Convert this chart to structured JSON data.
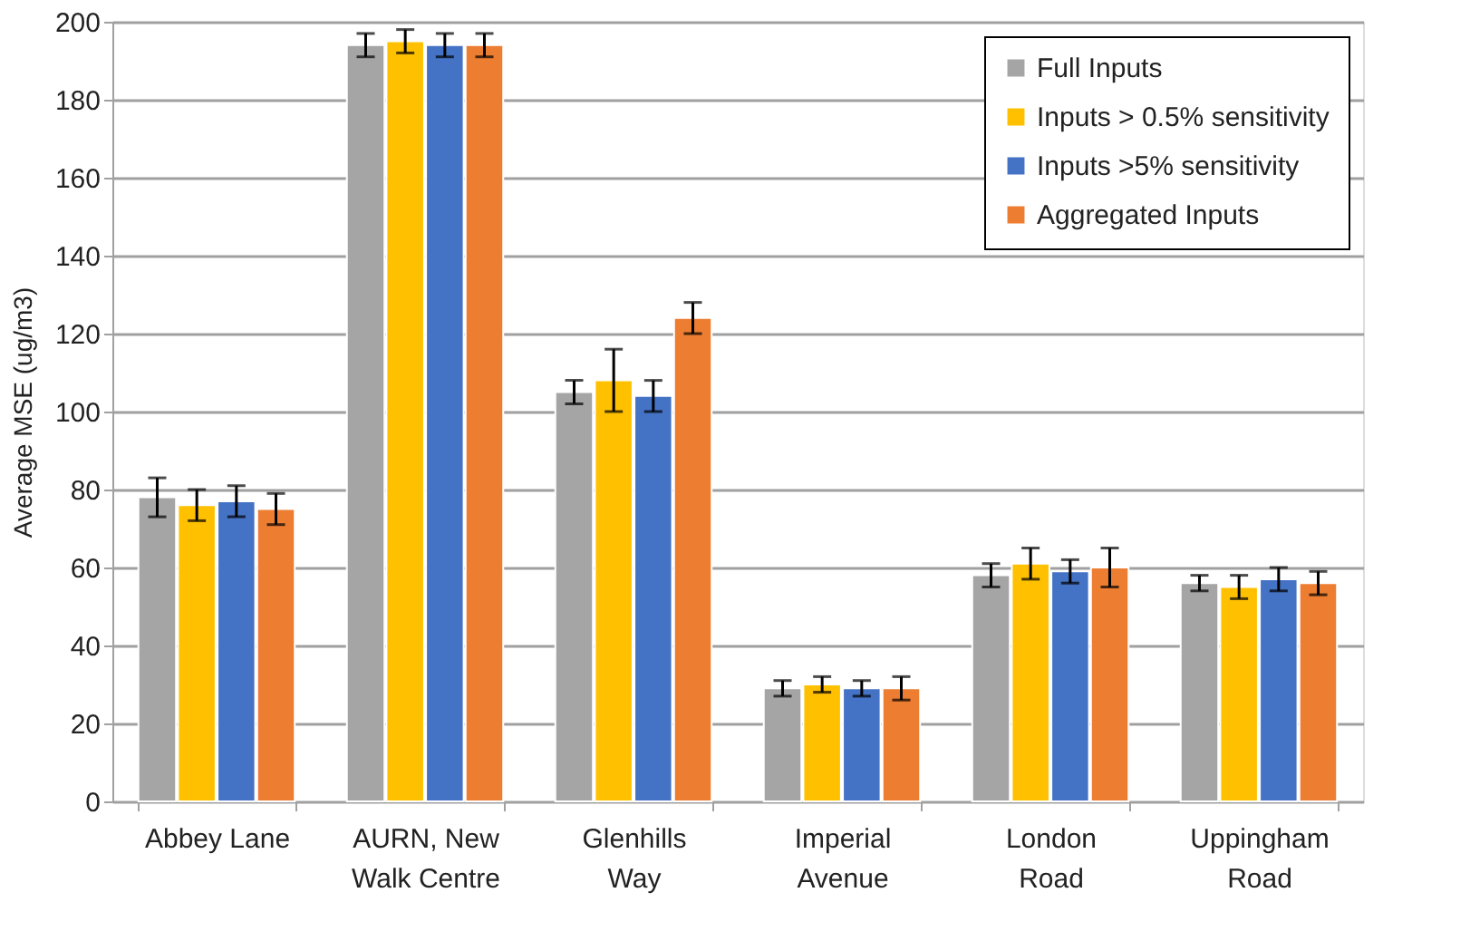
{
  "chart_data": {
    "type": "bar",
    "ylabel": "Average MSE (ug/m3)",
    "categories": [
      "Abbey Lane",
      "AURN, New\nWalk Centre",
      "Glenhills\nWay",
      "Imperial\nAvenue",
      "London\nRoad",
      "Uppingham\nRoad"
    ],
    "series": [
      {
        "name": "Full Inputs",
        "color": "#a5a5a5",
        "values": [
          78,
          194,
          105,
          29,
          58,
          56
        ],
        "errors": [
          5,
          3,
          3,
          2,
          3,
          2
        ]
      },
      {
        "name": "Inputs > 0.5% sensitivity",
        "color": "#ffc000",
        "values": [
          76,
          195,
          108,
          30,
          61,
          55
        ],
        "errors": [
          4,
          3,
          8,
          2,
          4,
          3
        ]
      },
      {
        "name": "Inputs >5% sensitivity",
        "color": "#4472c4",
        "values": [
          77,
          194,
          104,
          29,
          59,
          57
        ],
        "errors": [
          4,
          3,
          4,
          2,
          3,
          3
        ]
      },
      {
        "name": "Aggregated Inputs",
        "color": "#ed7d31",
        "values": [
          75,
          194,
          124,
          29,
          60,
          56
        ],
        "errors": [
          4,
          3,
          4,
          3,
          5,
          3
        ]
      }
    ],
    "ylim": [
      0,
      200
    ],
    "yticks": [
      0,
      20,
      40,
      60,
      80,
      100,
      120,
      140,
      160,
      180,
      200
    ],
    "grid": "y",
    "legend": "top right"
  }
}
